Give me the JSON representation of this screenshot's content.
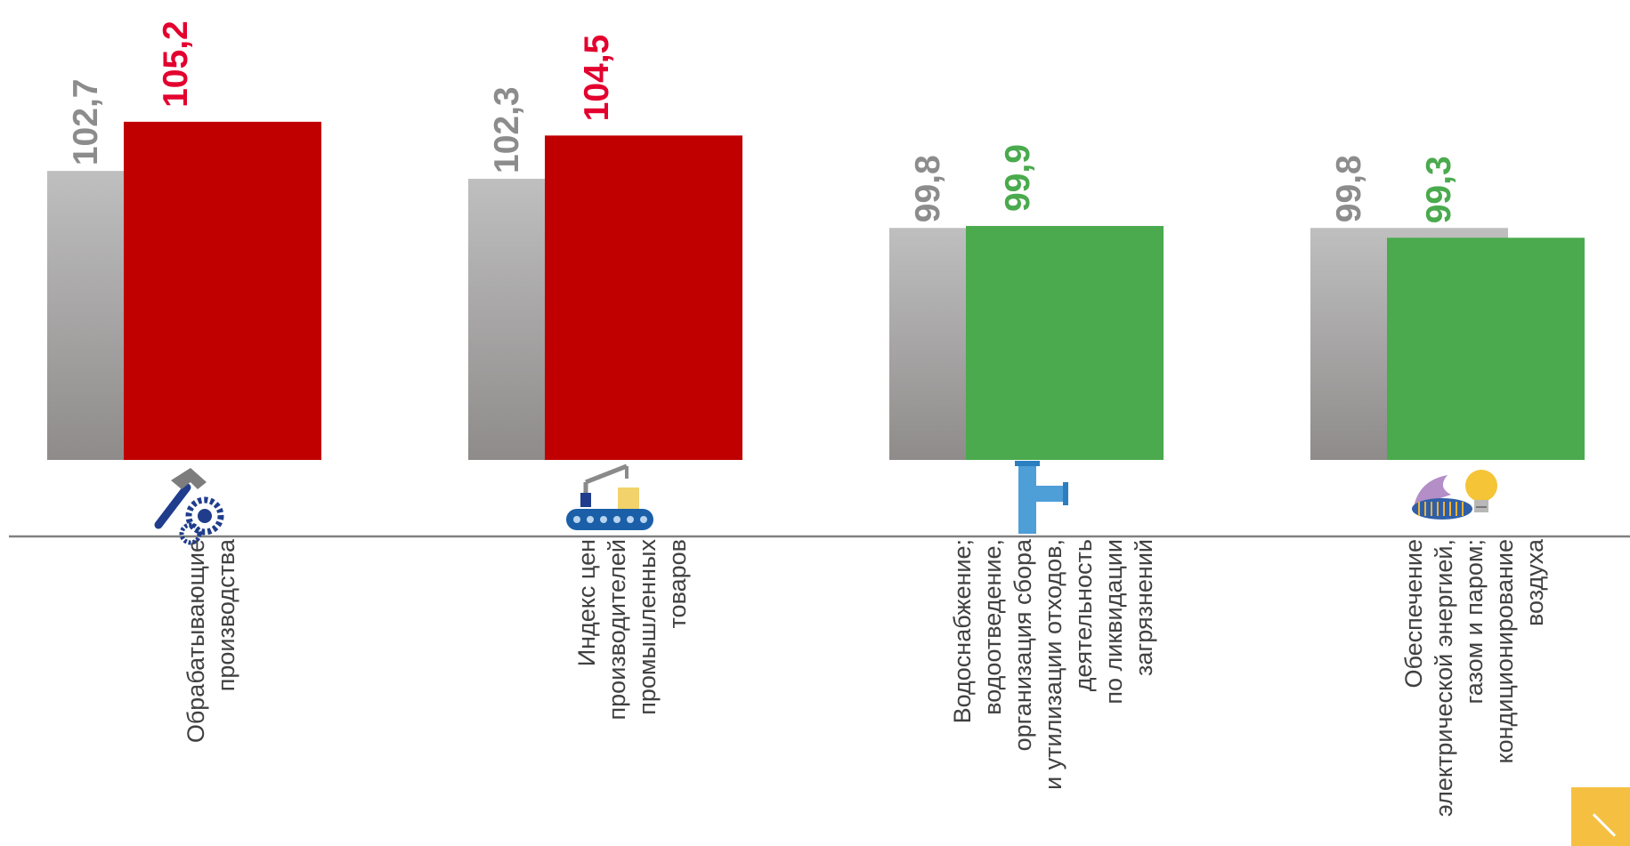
{
  "chart_data": {
    "type": "bar",
    "title": "",
    "xlabel": "",
    "ylabel": "",
    "categories": [
      [
        "Обрабатывающие",
        "производства"
      ],
      [
        "Индекс цен",
        "производителей",
        "промышленных",
        "товаров"
      ],
      [
        "Водоснабжение;",
        "водоотведение,",
        "организация  сбора",
        "и утилизации  отходов,",
        "деятельность",
        "по ликвидации",
        "загрязнений"
      ],
      [
        "Обеспечение",
        "электрической энергией,",
        "газом и паром;",
        "кондиционирование",
        "воздуха"
      ]
    ],
    "category_icons": [
      "hammer-gear-icon",
      "conveyor-robot-icon",
      "water-pipe-icon",
      "gas-burner-bulb-icon"
    ],
    "value_labels_shown": true,
    "series": [
      {
        "values": [
          102.7,
          102.3,
          99.8,
          99.8
        ],
        "labels": [
          "102,7",
          "102,3",
          "99,8",
          "99,8"
        ],
        "color": "#8f8f8f",
        "label_color": "#8c8c8c"
      },
      {
        "values": [
          105.2,
          104.5,
          99.9,
          99.3
        ],
        "labels": [
          "105,2",
          "104,5",
          "99,9",
          "99,3"
        ],
        "colors": [
          "#c00000",
          "#c00000",
          "#4aaa4d",
          "#4aaa4d"
        ],
        "label_colors": [
          "#e3002e",
          "#e3002e",
          "#4aaa4d",
          "#4aaa4d"
        ]
      }
    ],
    "ylim": [
      88,
      106.4
    ],
    "grid": false,
    "legend": "none"
  },
  "colors": {
    "axis": "#808080",
    "category_text": "#404040",
    "accent_tab": "#f5c042"
  }
}
